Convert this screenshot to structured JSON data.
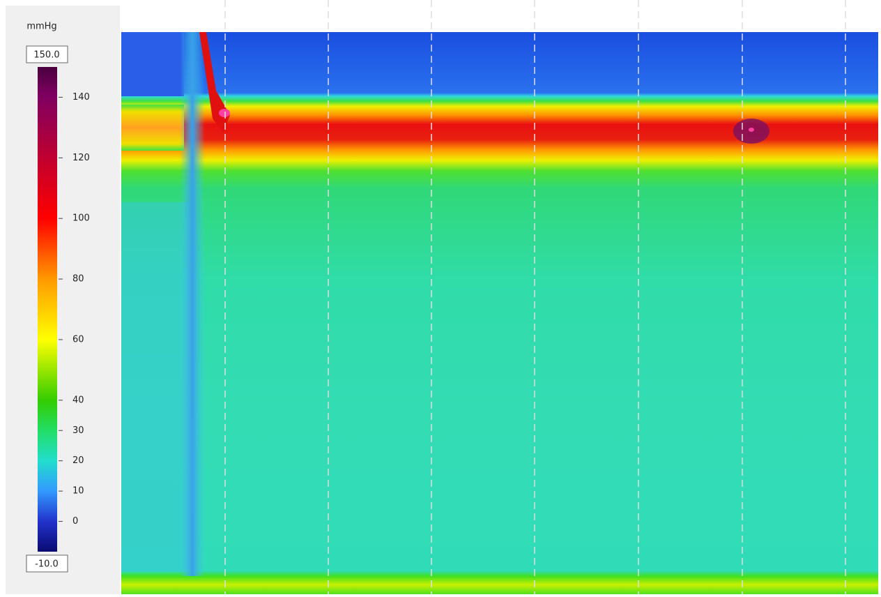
{
  "colorbar": {
    "unit": "mmHg",
    "max": {
      "value": 150,
      "label": "150.0"
    },
    "min": {
      "value": -10,
      "label": "-10.0"
    },
    "ticks": [
      140,
      120,
      100,
      80,
      60,
      40,
      30,
      20,
      10,
      0
    ]
  }
}
